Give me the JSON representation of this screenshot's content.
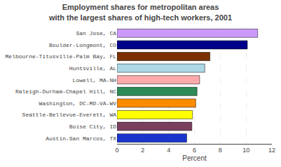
{
  "chart_data": {
    "type": "bar",
    "orientation": "horizontal",
    "title": "Employment shares for metropolitan areas\nwith the largest shares of high-tech workers, 2001",
    "xlabel": "Percent",
    "categories": [
      "Austin-San Marcos, TX",
      "Boise City, ID",
      "Seattle-Bellevue-Everett, WA",
      "Washington, DC-MD-VA-WV",
      "Raleigh-Durham-Chapel Hill, NC",
      "Lowell, MA-NH",
      "Huntsville, AL",
      "Melbourne-Titusville-Palm Bay, FL",
      "Boulder-Longmont, CO",
      "San Jose, CA"
    ],
    "values": [
      5.4,
      5.8,
      5.85,
      6.1,
      6.2,
      6.4,
      6.8,
      7.2,
      10.1,
      10.9
    ],
    "colors": [
      "#1a35cc",
      "#7b3f5e",
      "#ffff00",
      "#ff8c00",
      "#2e8b57",
      "#ffaaaa",
      "#add8e6",
      "#7b3000",
      "#00008b",
      "#cc99ff"
    ],
    "xlim": [
      0,
      12
    ],
    "xticks": [
      0,
      2,
      4,
      6,
      8,
      10,
      12
    ],
    "grid": true
  }
}
